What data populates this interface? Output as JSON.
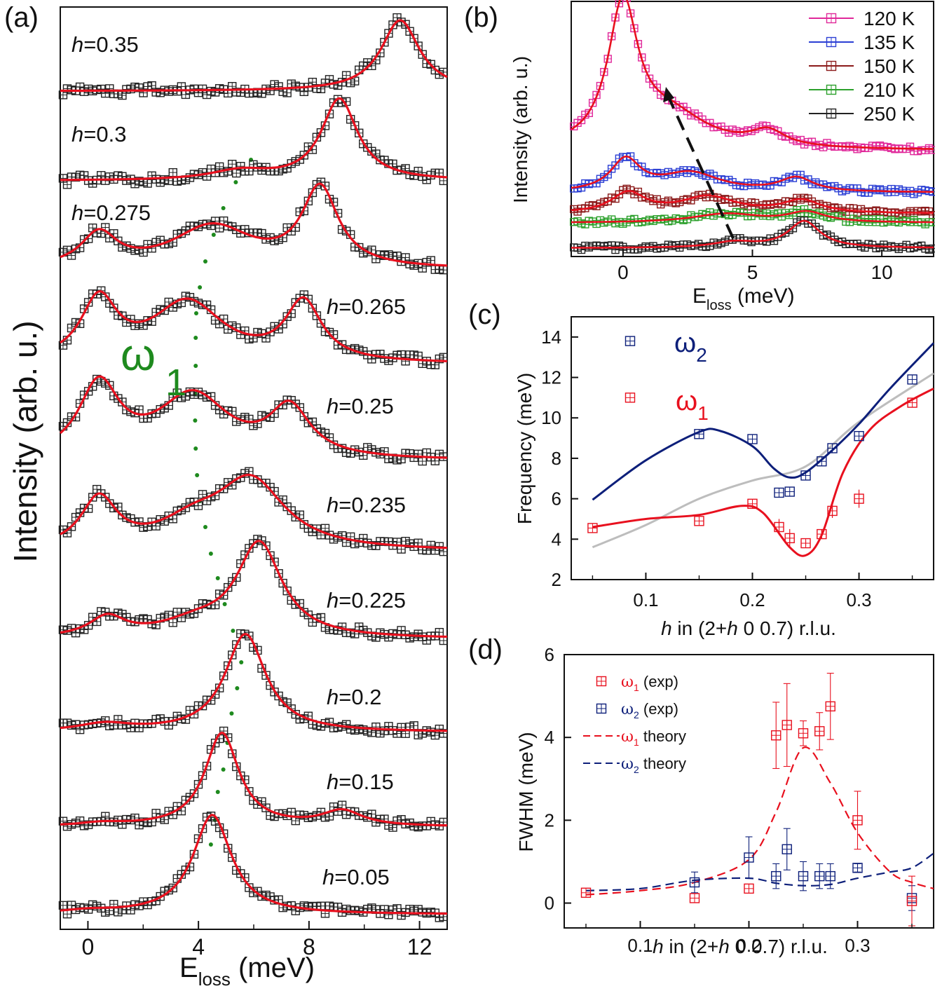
{
  "figure_title": "Four-panel figure: IXS spectra and phonon dispersion",
  "colors": {
    "marker": "#222222",
    "fit": "#e8101e",
    "guide": "#1e8a1e",
    "navy": "#0d1f7a",
    "gray": "#bdbdbd",
    "pink": "#e0289a",
    "blue": "#2b3fd4",
    "brown": "#8b1a1a",
    "green": "#2ca02c",
    "black": "#222222"
  },
  "chart_data": [
    {
      "id": "a",
      "panel_label": "(a)",
      "type": "line",
      "xlabel_main": "E",
      "xlabel_sub": "loss",
      "xlabel_units": " (meV)",
      "ylabel": "Intensity (arb. u.)",
      "xlim": [
        -1,
        13
      ],
      "xticks": [
        "0",
        "4",
        "8",
        "12"
      ],
      "xtick_values": [
        0,
        4,
        8,
        12
      ],
      "guide_label": "ω",
      "guide_sub": "1",
      "guide_points": [
        [
          4.5,
          0.05
        ],
        [
          4.85,
          0.15
        ],
        [
          5.45,
          0.2
        ],
        [
          5.2,
          0.225
        ],
        [
          4.3,
          0.235
        ],
        [
          3.9,
          0.25
        ],
        [
          3.9,
          0.265
        ],
        [
          4.3,
          0.275
        ],
        [
          5.5,
          0.29
        ],
        [
          6.2,
          0.3
        ]
      ],
      "series": [
        {
          "label": "h=0.05",
          "h": "h",
          "value": "=0.05",
          "baseline": 0.55,
          "peaks": [
            [
              4.5,
              6.6,
              0.85
            ],
            [
              0.0,
              0.2,
              1.2
            ]
          ]
        },
        {
          "label": "h=0.15",
          "h": "h",
          "value": "=0.15",
          "baseline": 0.5,
          "peaks": [
            [
              4.85,
              6.2,
              0.75
            ],
            [
              9.2,
              1.0,
              0.9
            ],
            [
              0.5,
              0.2,
              1.0
            ]
          ]
        },
        {
          "label": "h=0.2",
          "h": "h",
          "value": "=0.2",
          "baseline": 0.5,
          "peaks": [
            [
              5.7,
              6.5,
              0.9
            ],
            [
              0.6,
              0.5,
              1.2
            ]
          ]
        },
        {
          "label": "h=0.225",
          "h": "h",
          "value": "=0.225",
          "baseline": 0.55,
          "peaks": [
            [
              6.2,
              6.2,
              1.0
            ],
            [
              0.7,
              1.3,
              0.8
            ],
            [
              3.9,
              0.9,
              1.6
            ]
          ]
        },
        {
          "label": "h=0.235",
          "h": "h",
          "value": "=0.235",
          "baseline": 0.5,
          "peaks": [
            [
              5.9,
              4.5,
              1.5
            ],
            [
              0.4,
              3.3,
              0.8
            ],
            [
              3.8,
              1.5,
              1.5
            ]
          ]
        },
        {
          "label": "h=0.25",
          "h": "h",
          "value": "=0.25",
          "baseline": 0.5,
          "peaks": [
            [
              0.4,
              4.8,
              0.9
            ],
            [
              3.8,
              4.2,
              1.6
            ],
            [
              7.3,
              3.2,
              0.9
            ]
          ]
        },
        {
          "label": "h=0.265",
          "h": "h",
          "value": "=0.265",
          "baseline": 0.5,
          "peaks": [
            [
              0.4,
              4.0,
              0.8
            ],
            [
              3.6,
              4.0,
              1.6
            ],
            [
              7.8,
              3.9,
              0.8
            ]
          ]
        },
        {
          "label": "h=0.275",
          "h": "h",
          "value": "=0.275",
          "baseline": 0.5,
          "peaks": [
            [
              0.4,
              2.2,
              0.8
            ],
            [
              4.5,
              2.8,
              1.8
            ],
            [
              8.4,
              5.2,
              0.8
            ]
          ]
        },
        {
          "label": "h=0.3",
          "h": "h",
          "value": "=0.3",
          "baseline": 0.45,
          "peaks": [
            [
              9.1,
              5.4,
              0.8
            ],
            [
              5.5,
              0.6,
              1.3
            ]
          ]
        },
        {
          "label": "h=0.35",
          "h": "h",
          "value": "=0.35",
          "baseline": 0.3,
          "peaks": [
            [
              11.3,
              4.7,
              0.85
            ]
          ]
        }
      ]
    },
    {
      "id": "b",
      "panel_label": "(b)",
      "type": "line",
      "xlabel_main": "E",
      "xlabel_sub": "loss",
      "xlabel_units": " (meV)",
      "ylabel": "Intensity (arb. u.)",
      "xlim": [
        -2,
        12
      ],
      "xticks": [
        "0",
        "5",
        "10"
      ],
      "xtick_values": [
        0,
        5,
        10
      ],
      "arrow_from": [
        4.3,
        0.0
      ],
      "arrow_to": [
        1.7,
        0.0
      ],
      "series": [
        {
          "name": "120 K",
          "color_key": "pink",
          "offset": 5.0,
          "baseline": 0.0,
          "peaks": [
            [
              0.0,
              5.5,
              0.7
            ],
            [
              1.8,
              1.3,
              1.8
            ],
            [
              5.6,
              0.6,
              0.8
            ]
          ]
        },
        {
          "name": "135 K",
          "color_key": "blue",
          "offset": 3.55,
          "baseline": 0.0,
          "peaks": [
            [
              0.1,
              1.25,
              0.7
            ],
            [
              2.6,
              0.75,
              1.4
            ],
            [
              6.7,
              0.55,
              0.8
            ]
          ]
        },
        {
          "name": "150 K",
          "color_key": "brown",
          "offset": 2.25,
          "baseline": 0.0,
          "peaks": [
            [
              0.2,
              0.8,
              0.8
            ],
            [
              3.3,
              0.65,
              1.3
            ],
            [
              6.9,
              0.5,
              0.9
            ]
          ]
        },
        {
          "name": "210 K",
          "color_key": "green",
          "offset": 1.45,
          "baseline": 0.0,
          "peaks": [
            [
              4.0,
              0.35,
              1.6
            ],
            [
              7.1,
              0.4,
              0.9
            ]
          ]
        },
        {
          "name": "250 K",
          "color_key": "black",
          "offset": 0.45,
          "baseline": 0.0,
          "peaks": [
            [
              4.3,
              0.2,
              1.0
            ],
            [
              7.0,
              0.95,
              0.75
            ]
          ]
        }
      ],
      "ylim": [
        0,
        12
      ]
    },
    {
      "id": "c",
      "panel_label": "(c)",
      "type": "scatter",
      "xlabel": "h in (2+h 0 0.7) r.l.u.",
      "xlabel_h1": "h",
      "xlabel_mid": " in (2+",
      "xlabel_h2": "h",
      "xlabel_end": " 0 0.7) r.l.u.",
      "ylabel": "Frequency (meV)",
      "xlim": [
        0.03,
        0.37
      ],
      "ylim": [
        2,
        15
      ],
      "xticks": [
        "0.1",
        "0.2",
        "0.3"
      ],
      "xtick_values": [
        0.1,
        0.2,
        0.3
      ],
      "yticks": [
        "2",
        "4",
        "6",
        "8",
        "10",
        "12",
        "14"
      ],
      "ytick_values": [
        2,
        4,
        6,
        8,
        10,
        12,
        14
      ],
      "legend": [
        {
          "label": "ω",
          "sub": "2",
          "color_key": "navy",
          "marker": [
            0.09,
            13.8
          ]
        },
        {
          "label": "ω",
          "sub": "1",
          "color_key": "fit",
          "marker": [
            0.09,
            11.0
          ]
        }
      ],
      "omega2_exp": [
        [
          0.15,
          9.2
        ],
        [
          0.2,
          8.95
        ],
        [
          0.225,
          6.3
        ],
        [
          0.235,
          6.35
        ],
        [
          0.25,
          7.15
        ],
        [
          0.265,
          7.85
        ],
        [
          0.275,
          8.5
        ],
        [
          0.3,
          9.1
        ],
        [
          0.35,
          11.9
        ]
      ],
      "omega1_exp": [
        [
          0.05,
          4.55
        ],
        [
          0.15,
          4.9
        ],
        [
          0.2,
          5.75
        ],
        [
          0.225,
          4.6
        ],
        [
          0.235,
          4.05
        ],
        [
          0.25,
          3.8
        ],
        [
          0.265,
          4.25
        ],
        [
          0.275,
          5.4
        ],
        [
          0.3,
          6.0
        ],
        [
          0.35,
          10.75
        ]
      ],
      "omega1_err": [
        0,
        0,
        0,
        0.4,
        0.45,
        0.15,
        0.2,
        0.35,
        0.45,
        0
      ],
      "omega2_theory": [
        [
          0.05,
          5.95
        ],
        [
          0.1,
          7.9
        ],
        [
          0.15,
          9.3
        ],
        [
          0.17,
          9.35
        ],
        [
          0.2,
          8.6
        ],
        [
          0.22,
          7.5
        ],
        [
          0.235,
          7.05
        ],
        [
          0.25,
          7.3
        ],
        [
          0.275,
          8.4
        ],
        [
          0.3,
          9.7
        ],
        [
          0.33,
          11.5
        ],
        [
          0.37,
          13.7
        ]
      ],
      "omega1_theory": [
        [
          0.05,
          4.6
        ],
        [
          0.1,
          5.0
        ],
        [
          0.15,
          5.2
        ],
        [
          0.19,
          5.65
        ],
        [
          0.21,
          5.3
        ],
        [
          0.235,
          3.6
        ],
        [
          0.25,
          3.2
        ],
        [
          0.265,
          4.2
        ],
        [
          0.285,
          7.3
        ],
        [
          0.31,
          9.4
        ],
        [
          0.34,
          10.6
        ],
        [
          0.37,
          11.45
        ]
      ],
      "gray_theory": [
        [
          0.05,
          3.6
        ],
        [
          0.1,
          4.7
        ],
        [
          0.15,
          6.0
        ],
        [
          0.2,
          6.9
        ],
        [
          0.25,
          7.6
        ],
        [
          0.3,
          9.8
        ],
        [
          0.37,
          12.2
        ]
      ]
    },
    {
      "id": "d",
      "panel_label": "(d)",
      "type": "scatter",
      "xlabel_h1": "h",
      "xlabel_mid": " in (2+",
      "xlabel_h2": "h",
      "xlabel_end": " 0 0.7) r.l.u.",
      "ylabel": "FWHM (meV)",
      "xlim": [
        0.03,
        0.37
      ],
      "ylim": [
        -0.6,
        6
      ],
      "xticks": [
        "0.1",
        "0.2",
        "0.3"
      ],
      "xtick_values": [
        0.1,
        0.2,
        0.3
      ],
      "yticks": [
        "0",
        "2",
        "4",
        "6"
      ],
      "ytick_values": [
        0,
        2,
        4,
        6
      ],
      "legend": [
        {
          "label": "ω",
          "sub": "1",
          "tail": " (exp)",
          "color_key": "fit",
          "kind": "marker"
        },
        {
          "label": "ω",
          "sub": "2",
          "tail": " (exp)",
          "color_key": "navy",
          "kind": "marker"
        },
        {
          "label": "ω",
          "sub": "1",
          "tail": " theory",
          "color_key": "fit",
          "kind": "dash"
        },
        {
          "label": "ω",
          "sub": "2",
          "tail": " theory",
          "color_key": "navy",
          "kind": "dash"
        }
      ],
      "omega1_exp": [
        [
          0.05,
          0.25
        ],
        [
          0.15,
          0.12
        ],
        [
          0.2,
          0.35
        ],
        [
          0.225,
          4.05
        ],
        [
          0.235,
          4.3
        ],
        [
          0.25,
          4.1
        ],
        [
          0.265,
          4.15
        ],
        [
          0.275,
          4.75
        ],
        [
          0.3,
          2.0
        ],
        [
          0.35,
          0.05
        ]
      ],
      "omega1_err": [
        0,
        0,
        0,
        0.8,
        1.0,
        0.3,
        0.45,
        0.8,
        0.7,
        0.6
      ],
      "omega2_exp": [
        [
          0.15,
          0.5
        ],
        [
          0.2,
          1.1
        ],
        [
          0.225,
          0.65
        ],
        [
          0.235,
          1.3
        ],
        [
          0.25,
          0.65
        ],
        [
          0.265,
          0.65
        ],
        [
          0.275,
          0.65
        ],
        [
          0.3,
          0.85
        ],
        [
          0.35,
          0.12
        ]
      ],
      "omega2_err": [
        0.25,
        0.5,
        0.3,
        0.5,
        0.35,
        0.3,
        0.3,
        0.1,
        0.3
      ],
      "omega1_theory": [
        [
          0.05,
          0.2
        ],
        [
          0.1,
          0.3
        ],
        [
          0.15,
          0.5
        ],
        [
          0.2,
          1.05
        ],
        [
          0.225,
          2.2
        ],
        [
          0.25,
          3.75
        ],
        [
          0.275,
          2.9
        ],
        [
          0.3,
          1.7
        ],
        [
          0.33,
          0.75
        ],
        [
          0.35,
          0.5
        ],
        [
          0.37,
          0.35
        ]
      ],
      "omega2_theory": [
        [
          0.05,
          0.3
        ],
        [
          0.1,
          0.35
        ],
        [
          0.15,
          0.55
        ],
        [
          0.2,
          0.6
        ],
        [
          0.225,
          0.48
        ],
        [
          0.25,
          0.42
        ],
        [
          0.275,
          0.45
        ],
        [
          0.3,
          0.6
        ],
        [
          0.33,
          0.75
        ],
        [
          0.35,
          0.85
        ],
        [
          0.37,
          1.2
        ]
      ]
    }
  ]
}
